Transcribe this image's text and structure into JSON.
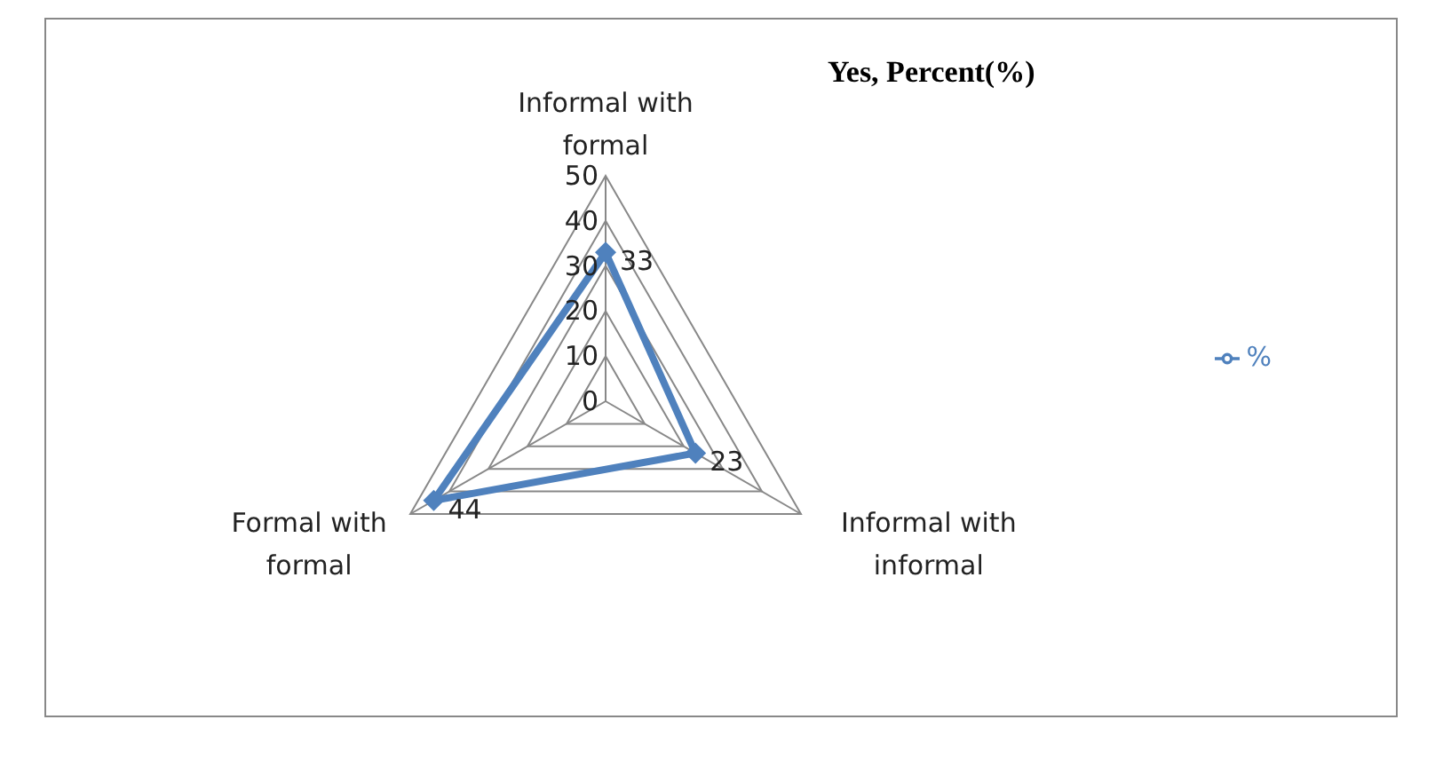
{
  "chart_data": {
    "type": "radar",
    "title": "Yes, Percent(%)",
    "categories": [
      "Informal with formal",
      "Informal with informal",
      "Formal with formal"
    ],
    "series": [
      {
        "name": "%",
        "color": "#4f81bd",
        "values": [
          33,
          23,
          44
        ]
      }
    ],
    "ylim": [
      0,
      50
    ],
    "yticks": [
      0,
      10,
      20,
      30,
      40,
      50
    ],
    "grid": true,
    "legend": "right",
    "marker": "diamond",
    "data_labels": true
  }
}
